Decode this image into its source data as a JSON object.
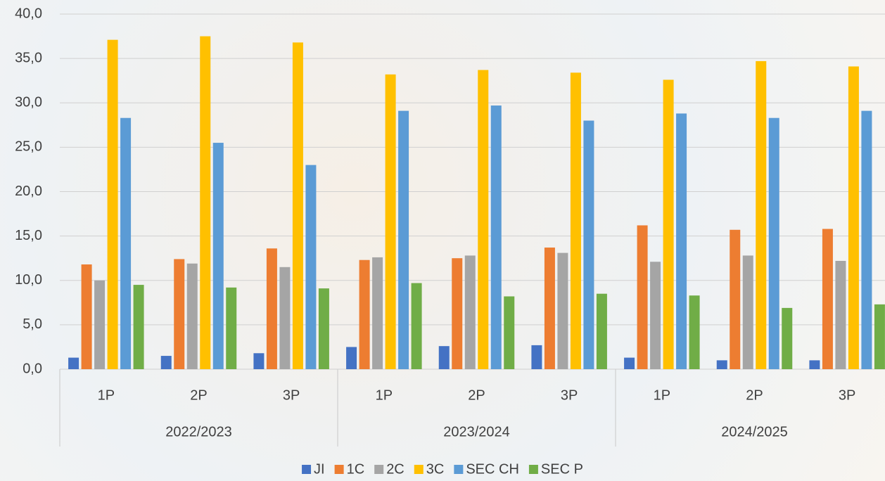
{
  "chart_data": {
    "type": "bar",
    "categories": [
      "1P",
      "2P",
      "3P",
      "1P",
      "2P",
      "3P",
      "1P",
      "2P",
      "3P"
    ],
    "groups": [
      "2022/2023",
      "2023/2024",
      "2024/2025"
    ],
    "series": [
      {
        "name": "JI",
        "color": "#4472c4",
        "values": [
          1.3,
          1.5,
          1.8,
          2.5,
          2.6,
          2.7,
          1.3,
          1.0,
          1.0
        ]
      },
      {
        "name": "1C",
        "color": "#ed7d31",
        "values": [
          11.8,
          12.4,
          13.6,
          12.3,
          12.5,
          13.7,
          16.2,
          15.7,
          15.8
        ]
      },
      {
        "name": "2C",
        "color": "#a5a5a5",
        "values": [
          10.0,
          11.9,
          11.5,
          12.6,
          12.8,
          13.1,
          12.1,
          12.8,
          12.2
        ]
      },
      {
        "name": "3C",
        "color": "#ffc000",
        "values": [
          37.1,
          37.5,
          36.8,
          33.2,
          33.7,
          33.4,
          32.6,
          34.7,
          34.1
        ]
      },
      {
        "name": "SEC CH",
        "color": "#5b9bd5",
        "values": [
          28.3,
          25.5,
          23.0,
          29.1,
          29.7,
          28.0,
          28.8,
          28.3,
          29.1
        ]
      },
      {
        "name": "SEC P",
        "color": "#70ad47",
        "values": [
          9.5,
          9.2,
          9.1,
          9.7,
          8.2,
          8.5,
          8.3,
          6.9,
          7.3
        ]
      }
    ],
    "ylim": [
      0,
      40
    ],
    "yticks": [
      {
        "value": 0,
        "label": "0,0"
      },
      {
        "value": 5,
        "label": "5,0"
      },
      {
        "value": 10,
        "label": "10,0"
      },
      {
        "value": 15,
        "label": "15,0"
      },
      {
        "value": 20,
        "label": "20,0"
      },
      {
        "value": 25,
        "label": "25,0"
      },
      {
        "value": 30,
        "label": "30,0"
      },
      {
        "value": 35,
        "label": "35,0"
      },
      {
        "value": 40,
        "label": "40,0"
      }
    ],
    "grid": true
  }
}
